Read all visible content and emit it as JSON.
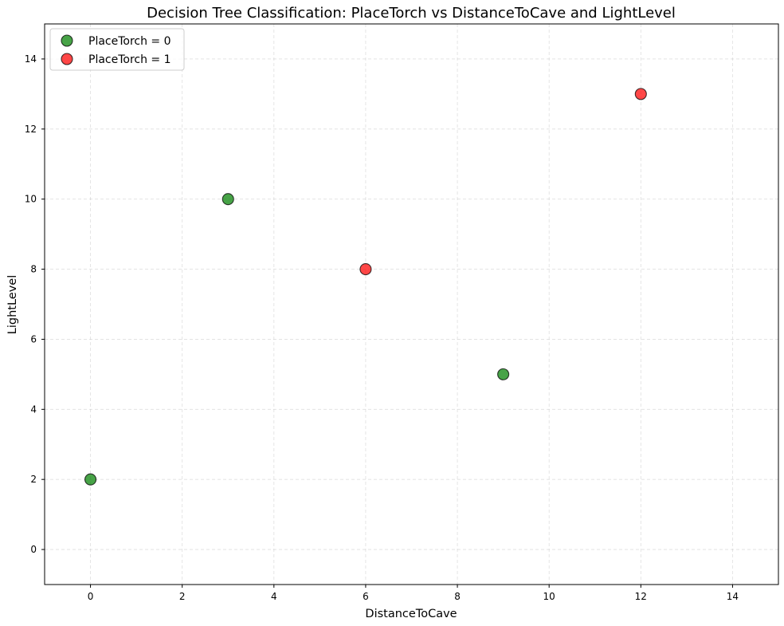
{
  "chart_data": {
    "type": "scatter",
    "title": "Decision Tree Classification: PlaceTorch vs DistanceToCave and LightLevel",
    "xlabel": "DistanceToCave",
    "ylabel": "LightLevel",
    "xlim": [
      -1,
      15
    ],
    "ylim": [
      -1,
      15
    ],
    "xticks": [
      "0",
      "2",
      "4",
      "6",
      "8",
      "10",
      "12",
      "14"
    ],
    "yticks": [
      "0",
      "2",
      "4",
      "6",
      "8",
      "10",
      "12",
      "14"
    ],
    "grid": true,
    "legend_position": "top-left",
    "series": [
      {
        "name": "PlaceTorch = 0",
        "color": "#008000",
        "points": [
          {
            "x": 0,
            "y": 2
          },
          {
            "x": 3,
            "y": 10
          },
          {
            "x": 9,
            "y": 5
          }
        ]
      },
      {
        "name": "PlaceTorch = 1",
        "color": "#ff0000",
        "points": [
          {
            "x": 6,
            "y": 8
          },
          {
            "x": 12,
            "y": 13
          }
        ]
      }
    ]
  }
}
